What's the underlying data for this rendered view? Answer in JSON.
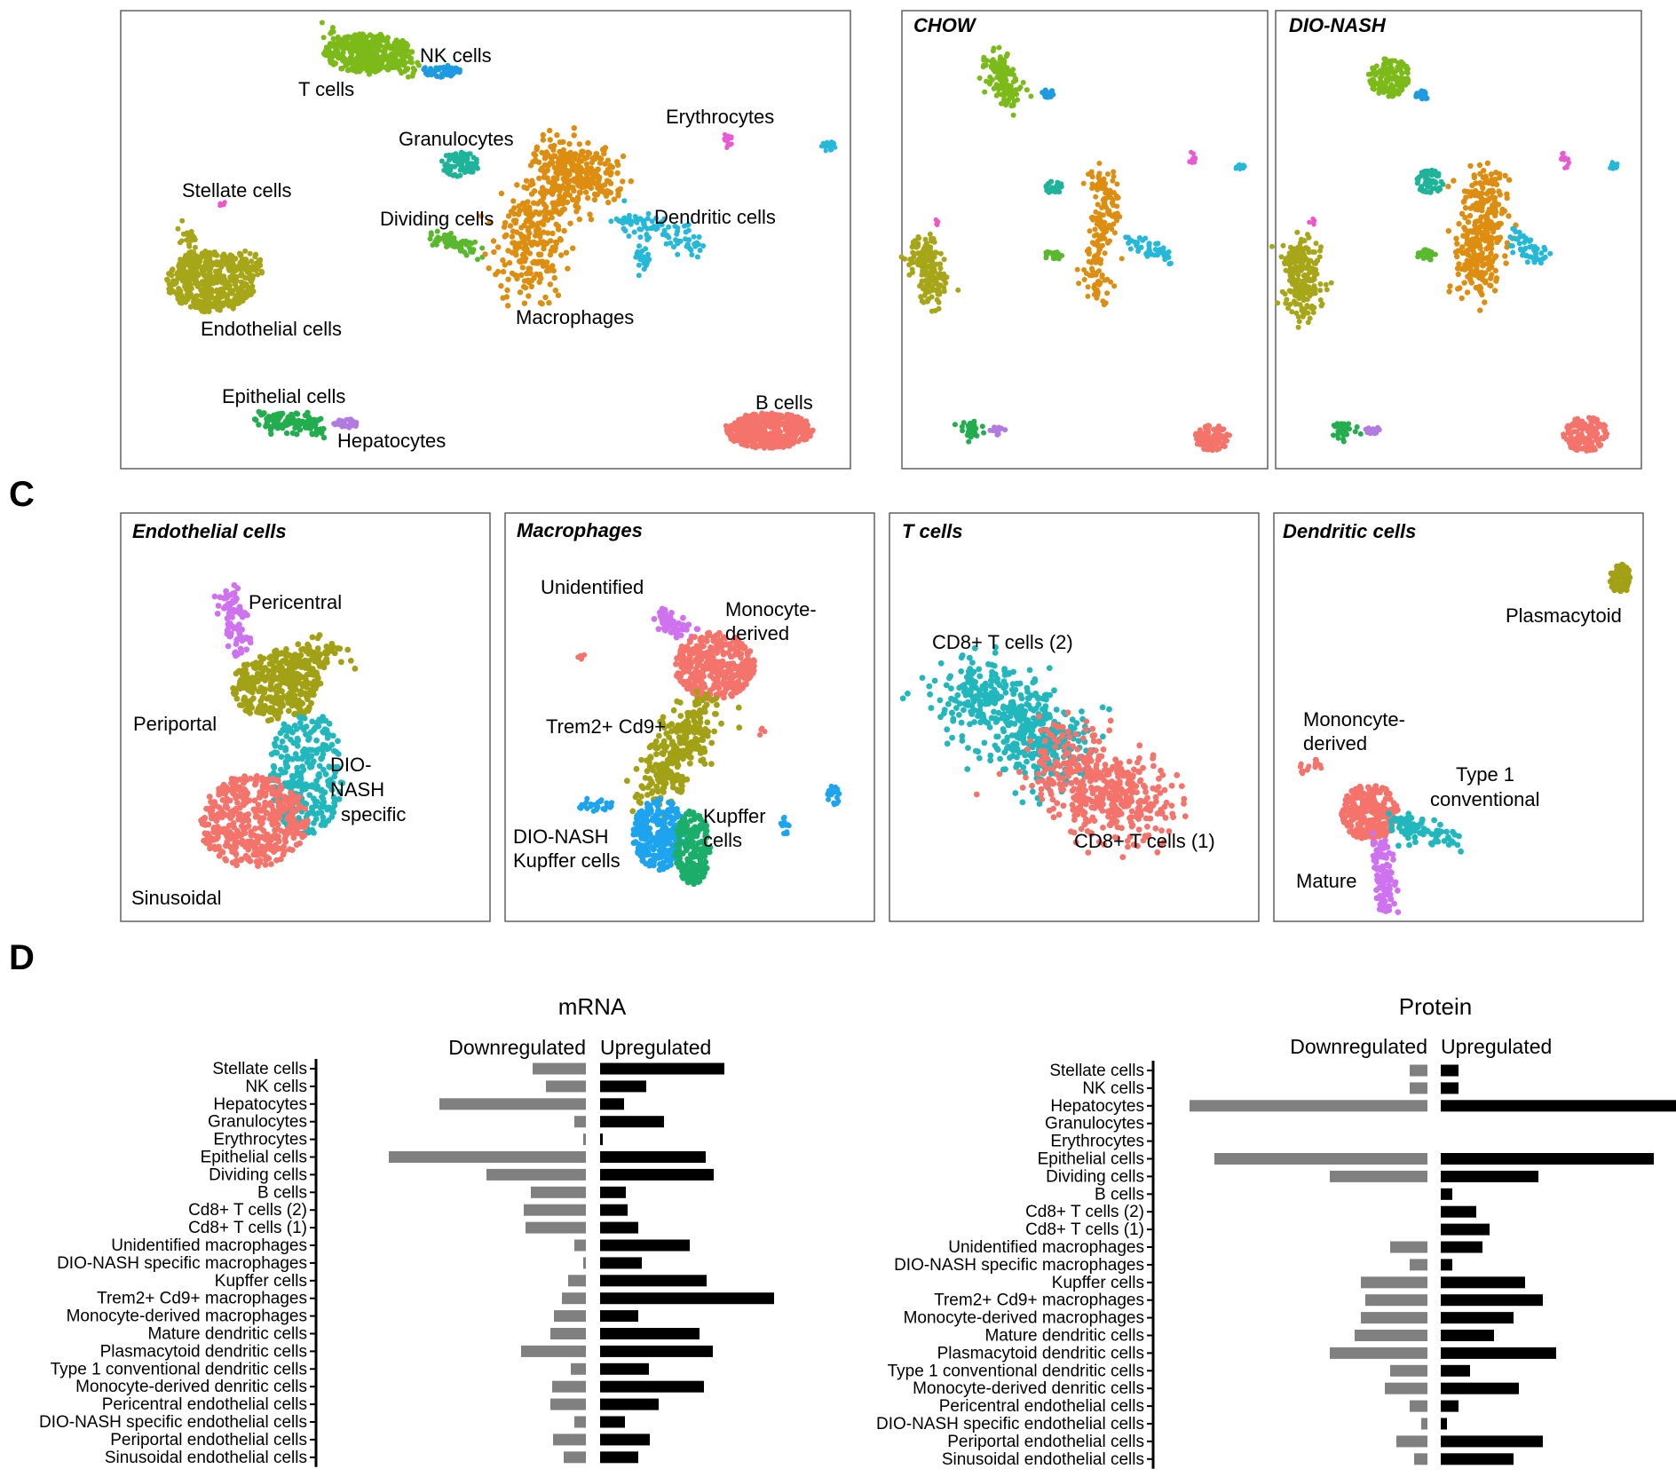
{
  "colors": {
    "t_cells": "#7cba1a",
    "nk_cells": "#1e9be0",
    "endothelial": "#a7a518",
    "macrophages": "#dd8e10",
    "dendritic": "#25b8d8",
    "granulocytes": "#1fb39a",
    "dividing": "#5ab82e",
    "erythrocytes": "#e85ad4",
    "stellate": "#f055c8",
    "epithelial": "#22ad4e",
    "hepatocytes": "#b27be0",
    "b_cells": "#f4736a",
    "salmon": "#f4736a",
    "violet": "#cf72ef",
    "olive": "#a2a116",
    "teal": "#21b7bd",
    "blue": "#1ea4ef",
    "green": "#1aae6a",
    "pink": "#ee5bd6",
    "down_bar": "#808080",
    "up_bar": "#000000"
  },
  "panel_a": {
    "labels": {
      "nk": "NK cells",
      "t": "T cells",
      "erythrocytes": "Erythrocytes",
      "granulocytes": "Granulocytes",
      "stellate": "Stellate cells",
      "dividing": "Dividing cells",
      "dendritic": "Dendritic cells",
      "endothelial": "Endothelial cells",
      "macrophages": "Macrophages",
      "epithelial": "Epithelial cells",
      "hepatocytes": "Hepatocytes",
      "b": "B cells"
    },
    "chow_title": "CHOW",
    "dionash_title": "DIO-NASH"
  },
  "section_c": "C",
  "panel_c": {
    "endothelial": {
      "title": "Endothelial  cells",
      "labels": {
        "pericentral": "Pericentral",
        "periportal": "Periportal",
        "dio1": "DIO-",
        "dio2": "NASH",
        "dio3": "specific",
        "sinusoidal": "Sinusoidal"
      }
    },
    "macrophages": {
      "title": "Macrophages",
      "labels": {
        "unidentified": "Unidentified",
        "mono1": "Monocyte-",
        "mono2": "derived",
        "trem": "Trem2+ Cd9+",
        "diok1": "DIO-NASH",
        "diok2": "Kupffer cells",
        "kup1": "Kupffer",
        "kup2": "cells"
      }
    },
    "tcells": {
      "title": "T cells",
      "labels": {
        "cd8_2": "CD8+ T cells (2)",
        "cd8_1": "CD8+ T cells (1)"
      }
    },
    "dendritic": {
      "title": "Dendritic cells",
      "labels": {
        "plasma": "Plasmacytoid",
        "mono1": "Mononcyte-",
        "mono2": "derived",
        "type1a": "Type  1",
        "type1b": "conventional",
        "mature": "Mature"
      }
    }
  },
  "section_d": "D",
  "chart_data": [
    {
      "type": "bar",
      "title": "mRNA",
      "left_header": "Downregulated",
      "right_header": "Upregulated",
      "categories": [
        "Stellate cells",
        "NK cells",
        "Hepatocytes",
        "Granulocytes",
        "Erythrocytes",
        "Epithelial cells",
        "Dividing cells",
        "B cells",
        "Cd8+ T cells (2)",
        "Cd8+ T cells (1)",
        "Unidentified macrophages",
        "DIO-NASH specific macrophages",
        "Kupffer cells",
        "Trem2+ Cd9+ macrophages",
        "Monocyte-derived macrophages",
        "Mature dendritic cells",
        "Plasmacytoid dendritic cells",
        "Type 1 conventional dendritic cells",
        "Monocyte-derived denritic cells",
        "Pericentral endothelial cells",
        "DIO-NASH specific endothelial cells",
        "Periportal endothelial cells",
        "Sinusoidal endothelial cells"
      ],
      "series": [
        {
          "values": [
            60,
            45,
            165,
            13,
            3,
            222,
            112,
            62,
            70,
            68,
            13,
            3,
            20,
            27,
            36,
            40,
            73,
            17,
            38,
            40,
            13,
            37,
            25
          ]
        },
        {
          "values": [
            140,
            52,
            27,
            72,
            3,
            119,
            128,
            29,
            31,
            43,
            101,
            47,
            120,
            196,
            43,
            112,
            127,
            55,
            117,
            66,
            28,
            56,
            43
          ]
        }
      ]
    },
    {
      "type": "bar",
      "title": "Protein",
      "left_header": "Downregulated",
      "right_header": "Upregulated",
      "categories": [
        "Stellate cells",
        "NK cells",
        "Hepatocytes",
        "Granulocytes",
        "Erythrocytes",
        "Epithelial cells",
        "Dividing cells",
        "B cells",
        "Cd8+ T cells (2)",
        "Cd8+ T cells (1)",
        "Unidentified macrophages",
        "DIO-NASH specific macrophages",
        "Kupffer cells",
        "Trem2+ Cd9+ macrophages",
        "Monocyte-derived macrophages",
        "Mature dendritic cells",
        "Plasmacytoid dendritic cells",
        "Type 1 conventional dendritic cells",
        "Monocyte-derived denritic cells",
        "Pericentral endothelial cells",
        "DIO-NASH specific endothelial cells",
        "Periportal endothelial cells",
        "Sinusoidal endothelial cells"
      ],
      "series": [
        {
          "values": [
            20,
            20,
            268,
            0,
            0,
            240,
            110,
            0,
            0,
            0,
            42,
            20,
            75,
            70,
            75,
            82,
            110,
            42,
            48,
            20,
            7,
            35,
            15
          ]
        },
        {
          "values": [
            20,
            20,
            265,
            0,
            0,
            240,
            110,
            13,
            40,
            55,
            47,
            13,
            95,
            115,
            82,
            60,
            130,
            33,
            88,
            20,
            7,
            115,
            82
          ]
        }
      ]
    }
  ]
}
